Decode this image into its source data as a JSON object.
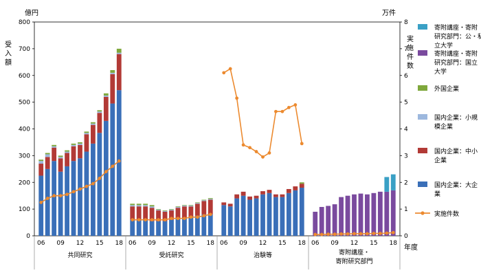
{
  "chart_data": {
    "type": "bar",
    "units": {
      "left": "億円",
      "right": "万件"
    },
    "ylabel_left": "受入額",
    "ylabel_right": "実施件数",
    "xlabel": "年度",
    "ylim_left": [
      0,
      800
    ],
    "ylim_right": [
      0,
      8
    ],
    "yticks_left": [
      0,
      100,
      200,
      300,
      400,
      500,
      600,
      700,
      800
    ],
    "yticks_right": [
      0,
      1,
      2,
      3,
      4,
      5,
      6,
      7,
      8
    ],
    "x_tick_labels": [
      "06",
      "09",
      "12",
      "15",
      "18"
    ],
    "legend": [
      {
        "key": "koshi",
        "label": "寄附講座・寄附研究部門：公・私立大学",
        "color": "#3aa0c5",
        "kind": "bar"
      },
      {
        "key": "kokuritsu",
        "label": "寄附講座・寄附研究部門：国立大学",
        "color": "#7a4a9e",
        "kind": "bar"
      },
      {
        "key": "gaikoku",
        "label": "外国企業",
        "color": "#7fa83c",
        "kind": "bar"
      },
      {
        "key": "small",
        "label": "国内企業：小規模企業",
        "color": "#9db8de",
        "kind": "bar"
      },
      {
        "key": "medium",
        "label": "国内企業：中小企業",
        "color": "#b23a36",
        "kind": "bar"
      },
      {
        "key": "large",
        "label": "国内企業：大企業",
        "color": "#3a6fb8",
        "kind": "bar"
      },
      {
        "key": "count",
        "label": "実施件数",
        "color": "#ec8a2f",
        "kind": "line"
      }
    ],
    "groups": [
      {
        "name": "共同研究",
        "years": [
          "06",
          "07",
          "08",
          "09",
          "10",
          "11",
          "12",
          "13",
          "14",
          "15",
          "16",
          "17",
          "18"
        ],
        "series": {
          "large": [
            225,
            250,
            280,
            240,
            260,
            280,
            290,
            315,
            345,
            385,
            430,
            495,
            545
          ],
          "medium": [
            45,
            45,
            50,
            50,
            50,
            55,
            50,
            65,
            70,
            75,
            90,
            110,
            135
          ],
          "small": [
            10,
            10,
            5,
            5,
            5,
            5,
            5,
            5,
            5,
            5,
            5,
            5,
            5
          ],
          "gaikoku": [
            5,
            5,
            5,
            5,
            5,
            5,
            5,
            5,
            5,
            5,
            8,
            10,
            15
          ]
        },
        "count": [
          1.25,
          1.4,
          1.5,
          1.5,
          1.55,
          1.65,
          1.75,
          1.85,
          1.95,
          2.15,
          2.4,
          2.6,
          2.8
        ]
      },
      {
        "name": "受託研究",
        "years": [
          "06",
          "07",
          "08",
          "09",
          "10",
          "11",
          "12",
          "13",
          "14",
          "15",
          "16",
          "17",
          "18"
        ],
        "series": {
          "large": [
            60,
            60,
            60,
            55,
            55,
            55,
            60,
            65,
            65,
            70,
            75,
            80,
            80
          ],
          "medium": [
            50,
            50,
            50,
            50,
            40,
            35,
            35,
            40,
            45,
            40,
            45,
            50,
            55
          ],
          "small": [
            5,
            5,
            5,
            5,
            3,
            3,
            3,
            3,
            3,
            3,
            3,
            3,
            3
          ],
          "gaikoku": [
            5,
            5,
            5,
            5,
            2,
            2,
            2,
            2,
            2,
            2,
            2,
            2,
            3
          ]
        },
        "count": [
          0.6,
          0.6,
          0.6,
          0.6,
          0.6,
          0.6,
          0.65,
          0.65,
          0.65,
          0.7,
          0.7,
          0.75,
          0.8
        ]
      },
      {
        "name": "治験等",
        "years": [
          "06",
          "07",
          "08",
          "09",
          "10",
          "11",
          "12",
          "13",
          "14",
          "15",
          "16",
          "17",
          "18"
        ],
        "series": {
          "large": [
            115,
            110,
            140,
            150,
            135,
            140,
            155,
            160,
            145,
            145,
            160,
            170,
            180
          ],
          "medium": [
            10,
            10,
            15,
            15,
            12,
            10,
            12,
            12,
            10,
            10,
            15,
            15,
            15
          ],
          "small": [
            0,
            0,
            0,
            0,
            0,
            0,
            0,
            0,
            0,
            0,
            0,
            0,
            0
          ],
          "gaikoku": [
            0,
            0,
            0,
            0,
            0,
            0,
            0,
            0,
            0,
            0,
            0,
            0,
            5
          ]
        },
        "count": [
          6.1,
          6.25,
          5.15,
          3.4,
          3.3,
          3.15,
          2.95,
          3.1,
          4.65,
          4.65,
          4.8,
          4.9,
          3.45
        ]
      },
      {
        "name": "寄附講座・寄附研究部門",
        "years": [
          "06",
          "07",
          "08",
          "09",
          "10",
          "11",
          "12",
          "13",
          "14",
          "15",
          "16",
          "17",
          "18"
        ],
        "series": {
          "kokuritsu": [
            90,
            108,
            112,
            118,
            145,
            150,
            155,
            158,
            155,
            160,
            165,
            165,
            170
          ],
          "koshi": [
            0,
            0,
            0,
            0,
            0,
            0,
            0,
            0,
            0,
            0,
            0,
            55,
            60
          ]
        },
        "count": [
          0.05,
          0.05,
          0.06,
          0.06,
          0.07,
          0.07,
          0.08,
          0.08,
          0.08,
          0.09,
          0.09,
          0.1,
          0.12
        ]
      }
    ]
  }
}
